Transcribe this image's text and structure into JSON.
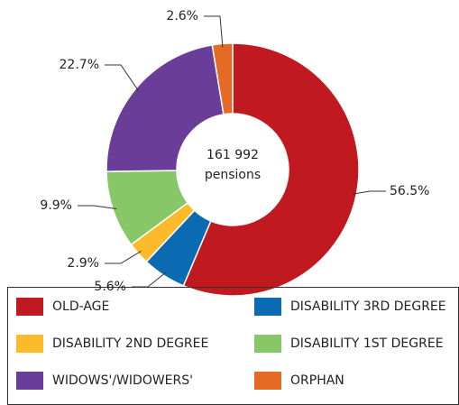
{
  "chart_data": {
    "type": "donut",
    "center_label": [
      "161 992",
      "pensions"
    ],
    "categories": [
      "OLD-AGE",
      "DISABILITY 3RD DEGREE",
      "DISABILITY 2ND DEGREE",
      "DISABILITY 1ST DEGREE",
      "WIDOWS'/WIDOWERS'",
      "ORPHAN"
    ],
    "values": [
      56.5,
      5.6,
      2.9,
      9.9,
      22.7,
      2.6
    ],
    "value_labels": [
      "56.5%",
      "5.6%",
      "2.9%",
      "9.9%",
      "22.7%",
      "2.6%"
    ],
    "colors": [
      "#c0191f",
      "#0a6bb3",
      "#fbbb2b",
      "#87c767",
      "#6a3e98",
      "#e56b25"
    ]
  }
}
